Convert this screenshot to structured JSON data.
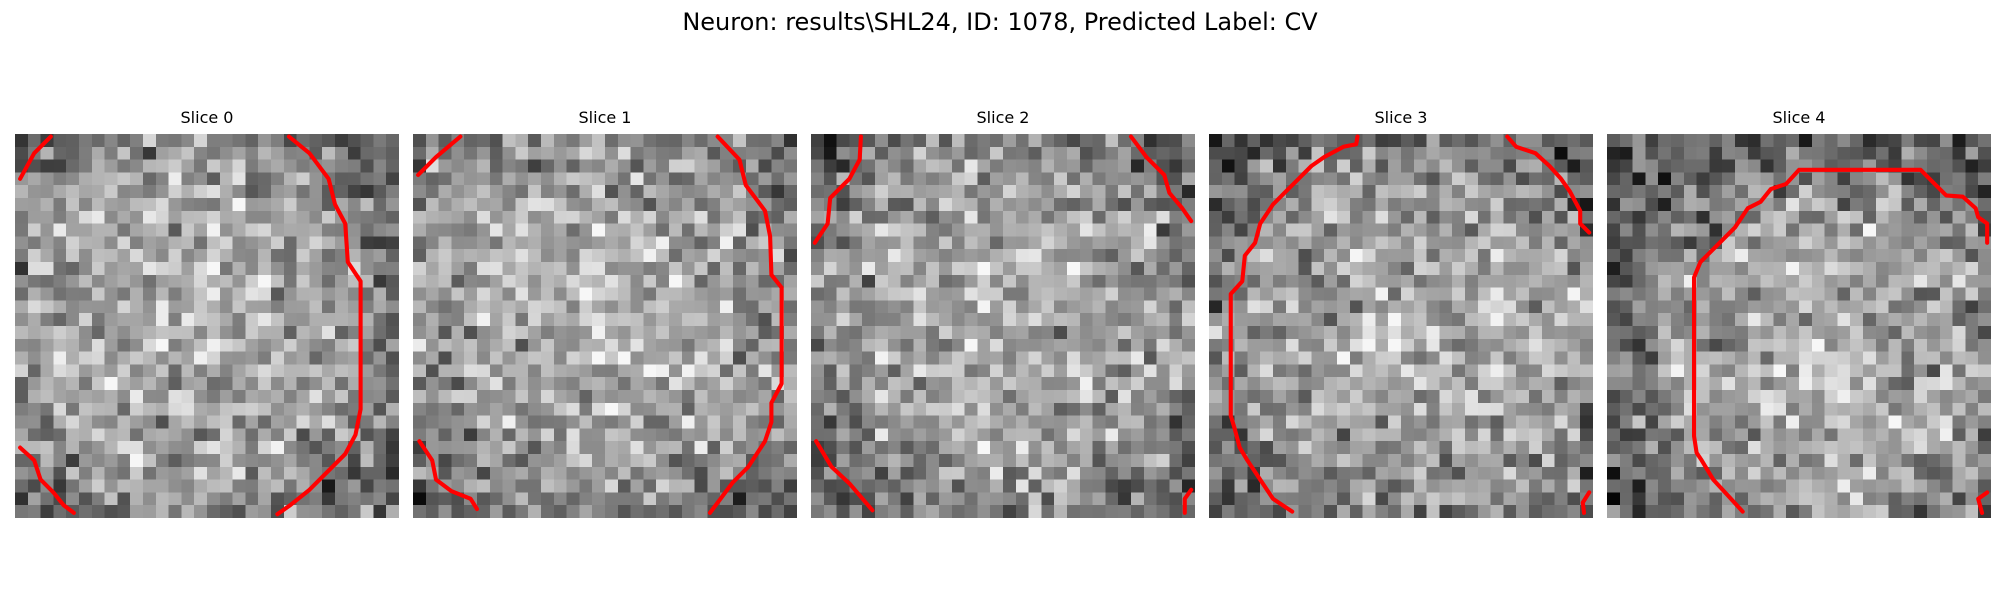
{
  "title": "Neuron: results\\SHL24, ID: 1078, Predicted Label: CV",
  "colors": {
    "contour": "#ff0000",
    "background": "#ffffff"
  },
  "image_grid": {
    "rows": 30,
    "cols": 30,
    "colormap": "gray"
  },
  "slices": [
    {
      "label": "Slice 0",
      "seed": 11,
      "blob": {
        "cx": 14.0,
        "cy": 14.5,
        "rx": 13.0,
        "ry": 13.5
      },
      "contours": [
        [
          [
            0.4,
            3.5
          ],
          [
            1.5,
            1.5
          ],
          [
            2.8,
            0.2
          ]
        ],
        [
          [
            21.4,
            0.2
          ],
          [
            23.0,
            1.5
          ],
          [
            24.5,
            3.5
          ],
          [
            25.0,
            5.5
          ],
          [
            25.8,
            7.0
          ],
          [
            26.0,
            10.0
          ],
          [
            27.0,
            11.5
          ],
          [
            27.0,
            21.5
          ],
          [
            26.6,
            23.5
          ],
          [
            25.8,
            25.0
          ],
          [
            23.0,
            27.8
          ],
          [
            21.5,
            29.0
          ],
          [
            20.5,
            29.7
          ]
        ],
        [
          [
            0.4,
            24.5
          ],
          [
            1.5,
            25.5
          ],
          [
            2.0,
            27.0
          ],
          [
            3.0,
            28.0
          ],
          [
            3.8,
            29.0
          ],
          [
            4.6,
            29.6
          ]
        ]
      ]
    },
    {
      "label": "Slice 1",
      "seed": 23,
      "blob": {
        "cx": 14.5,
        "cy": 14.0,
        "rx": 14.5,
        "ry": 14.0
      },
      "contours": [
        [
          [
            0.4,
            3.2
          ],
          [
            1.8,
            1.8
          ],
          [
            3.7,
            0.2
          ]
        ],
        [
          [
            23.8,
            0.2
          ],
          [
            25.5,
            2.0
          ],
          [
            26.0,
            4.0
          ],
          [
            27.5,
            6.0
          ],
          [
            27.9,
            8.0
          ],
          [
            28.0,
            11.0
          ],
          [
            28.8,
            12.0
          ],
          [
            28.8,
            19.5
          ],
          [
            28.0,
            21.0
          ],
          [
            28.0,
            22.5
          ],
          [
            27.5,
            24.0
          ],
          [
            26.2,
            26.0
          ],
          [
            25.0,
            27.2
          ],
          [
            23.2,
            29.6
          ]
        ],
        [
          [
            0.5,
            24.0
          ],
          [
            1.5,
            25.5
          ],
          [
            1.8,
            27.0
          ],
          [
            3.0,
            27.9
          ],
          [
            4.5,
            28.5
          ],
          [
            5.0,
            29.3
          ]
        ]
      ]
    },
    {
      "label": "Slice 2",
      "seed": 37,
      "blob": {
        "cx": 15.0,
        "cy": 15.0,
        "rx": 13.0,
        "ry": 13.0
      },
      "contours": [
        [
          [
            0.3,
            8.5
          ],
          [
            1.3,
            7.0
          ],
          [
            1.5,
            5.0
          ],
          [
            3.0,
            3.5
          ],
          [
            3.8,
            2.0
          ],
          [
            3.9,
            0.2
          ]
        ],
        [
          [
            25.0,
            0.2
          ],
          [
            26.2,
            1.8
          ],
          [
            27.6,
            3.2
          ],
          [
            28.0,
            4.6
          ],
          [
            29.0,
            5.8
          ],
          [
            29.7,
            6.8
          ]
        ],
        [
          [
            0.4,
            24.0
          ],
          [
            1.6,
            26.0
          ],
          [
            3.0,
            27.3
          ],
          [
            4.8,
            29.4
          ]
        ],
        [
          [
            29.7,
            27.8
          ],
          [
            29.2,
            28.5
          ],
          [
            29.2,
            29.6
          ]
        ]
      ]
    },
    {
      "label": "Slice 3",
      "seed": 53,
      "blob": {
        "cx": 15.5,
        "cy": 16.0,
        "rx": 13.5,
        "ry": 13.0
      },
      "contours": [
        [
          [
            6.5,
            29.5
          ],
          [
            5.0,
            28.5
          ],
          [
            4.0,
            27.0
          ],
          [
            3.0,
            25.5
          ],
          [
            2.4,
            24.5
          ],
          [
            2.0,
            23.0
          ],
          [
            1.7,
            22.0
          ],
          [
            1.7,
            12.5
          ],
          [
            2.6,
            11.5
          ],
          [
            2.8,
            9.5
          ],
          [
            3.6,
            8.5
          ],
          [
            4.0,
            7.0
          ],
          [
            5.0,
            5.5
          ],
          [
            6.0,
            4.5
          ],
          [
            7.0,
            3.5
          ],
          [
            8.0,
            2.5
          ],
          [
            9.0,
            1.8
          ],
          [
            10.5,
            1.0
          ],
          [
            11.5,
            0.8
          ],
          [
            11.6,
            0.2
          ]
        ],
        [
          [
            23.3,
            0.2
          ],
          [
            24.0,
            1.0
          ],
          [
            25.5,
            1.5
          ],
          [
            26.6,
            2.5
          ],
          [
            27.5,
            3.5
          ],
          [
            28.2,
            4.5
          ],
          [
            29.0,
            6.0
          ],
          [
            29.0,
            7.0
          ],
          [
            29.7,
            7.7
          ]
        ],
        [
          [
            29.7,
            28.0
          ],
          [
            29.2,
            28.8
          ],
          [
            29.3,
            29.6
          ]
        ]
      ]
    },
    {
      "label": "Slice 4",
      "seed": 71,
      "blob": {
        "cx": 17.5,
        "cy": 17.5,
        "rx": 12.5,
        "ry": 12.0
      },
      "contours": [
        [
          [
            10.6,
            29.5
          ],
          [
            9.5,
            28.3
          ],
          [
            8.3,
            27.0
          ],
          [
            7.4,
            25.5
          ],
          [
            7.0,
            24.9
          ],
          [
            6.8,
            23.6
          ],
          [
            6.8,
            11.2
          ],
          [
            7.3,
            10.0
          ],
          [
            8.0,
            9.3
          ],
          [
            9.0,
            8.3
          ],
          [
            10.0,
            7.3
          ],
          [
            11.0,
            5.8
          ],
          [
            12.0,
            5.3
          ],
          [
            12.8,
            4.3
          ],
          [
            14.0,
            3.9
          ],
          [
            15.0,
            2.8
          ],
          [
            24.5,
            2.8
          ],
          [
            25.5,
            3.8
          ],
          [
            26.5,
            4.8
          ],
          [
            27.8,
            4.9
          ],
          [
            28.8,
            5.8
          ],
          [
            29.0,
            6.5
          ],
          [
            29.7,
            7.0
          ],
          [
            29.7,
            8.5
          ]
        ],
        [
          [
            29.7,
            28.0
          ],
          [
            29.0,
            28.5
          ],
          [
            29.3,
            29.6
          ]
        ]
      ]
    }
  ]
}
